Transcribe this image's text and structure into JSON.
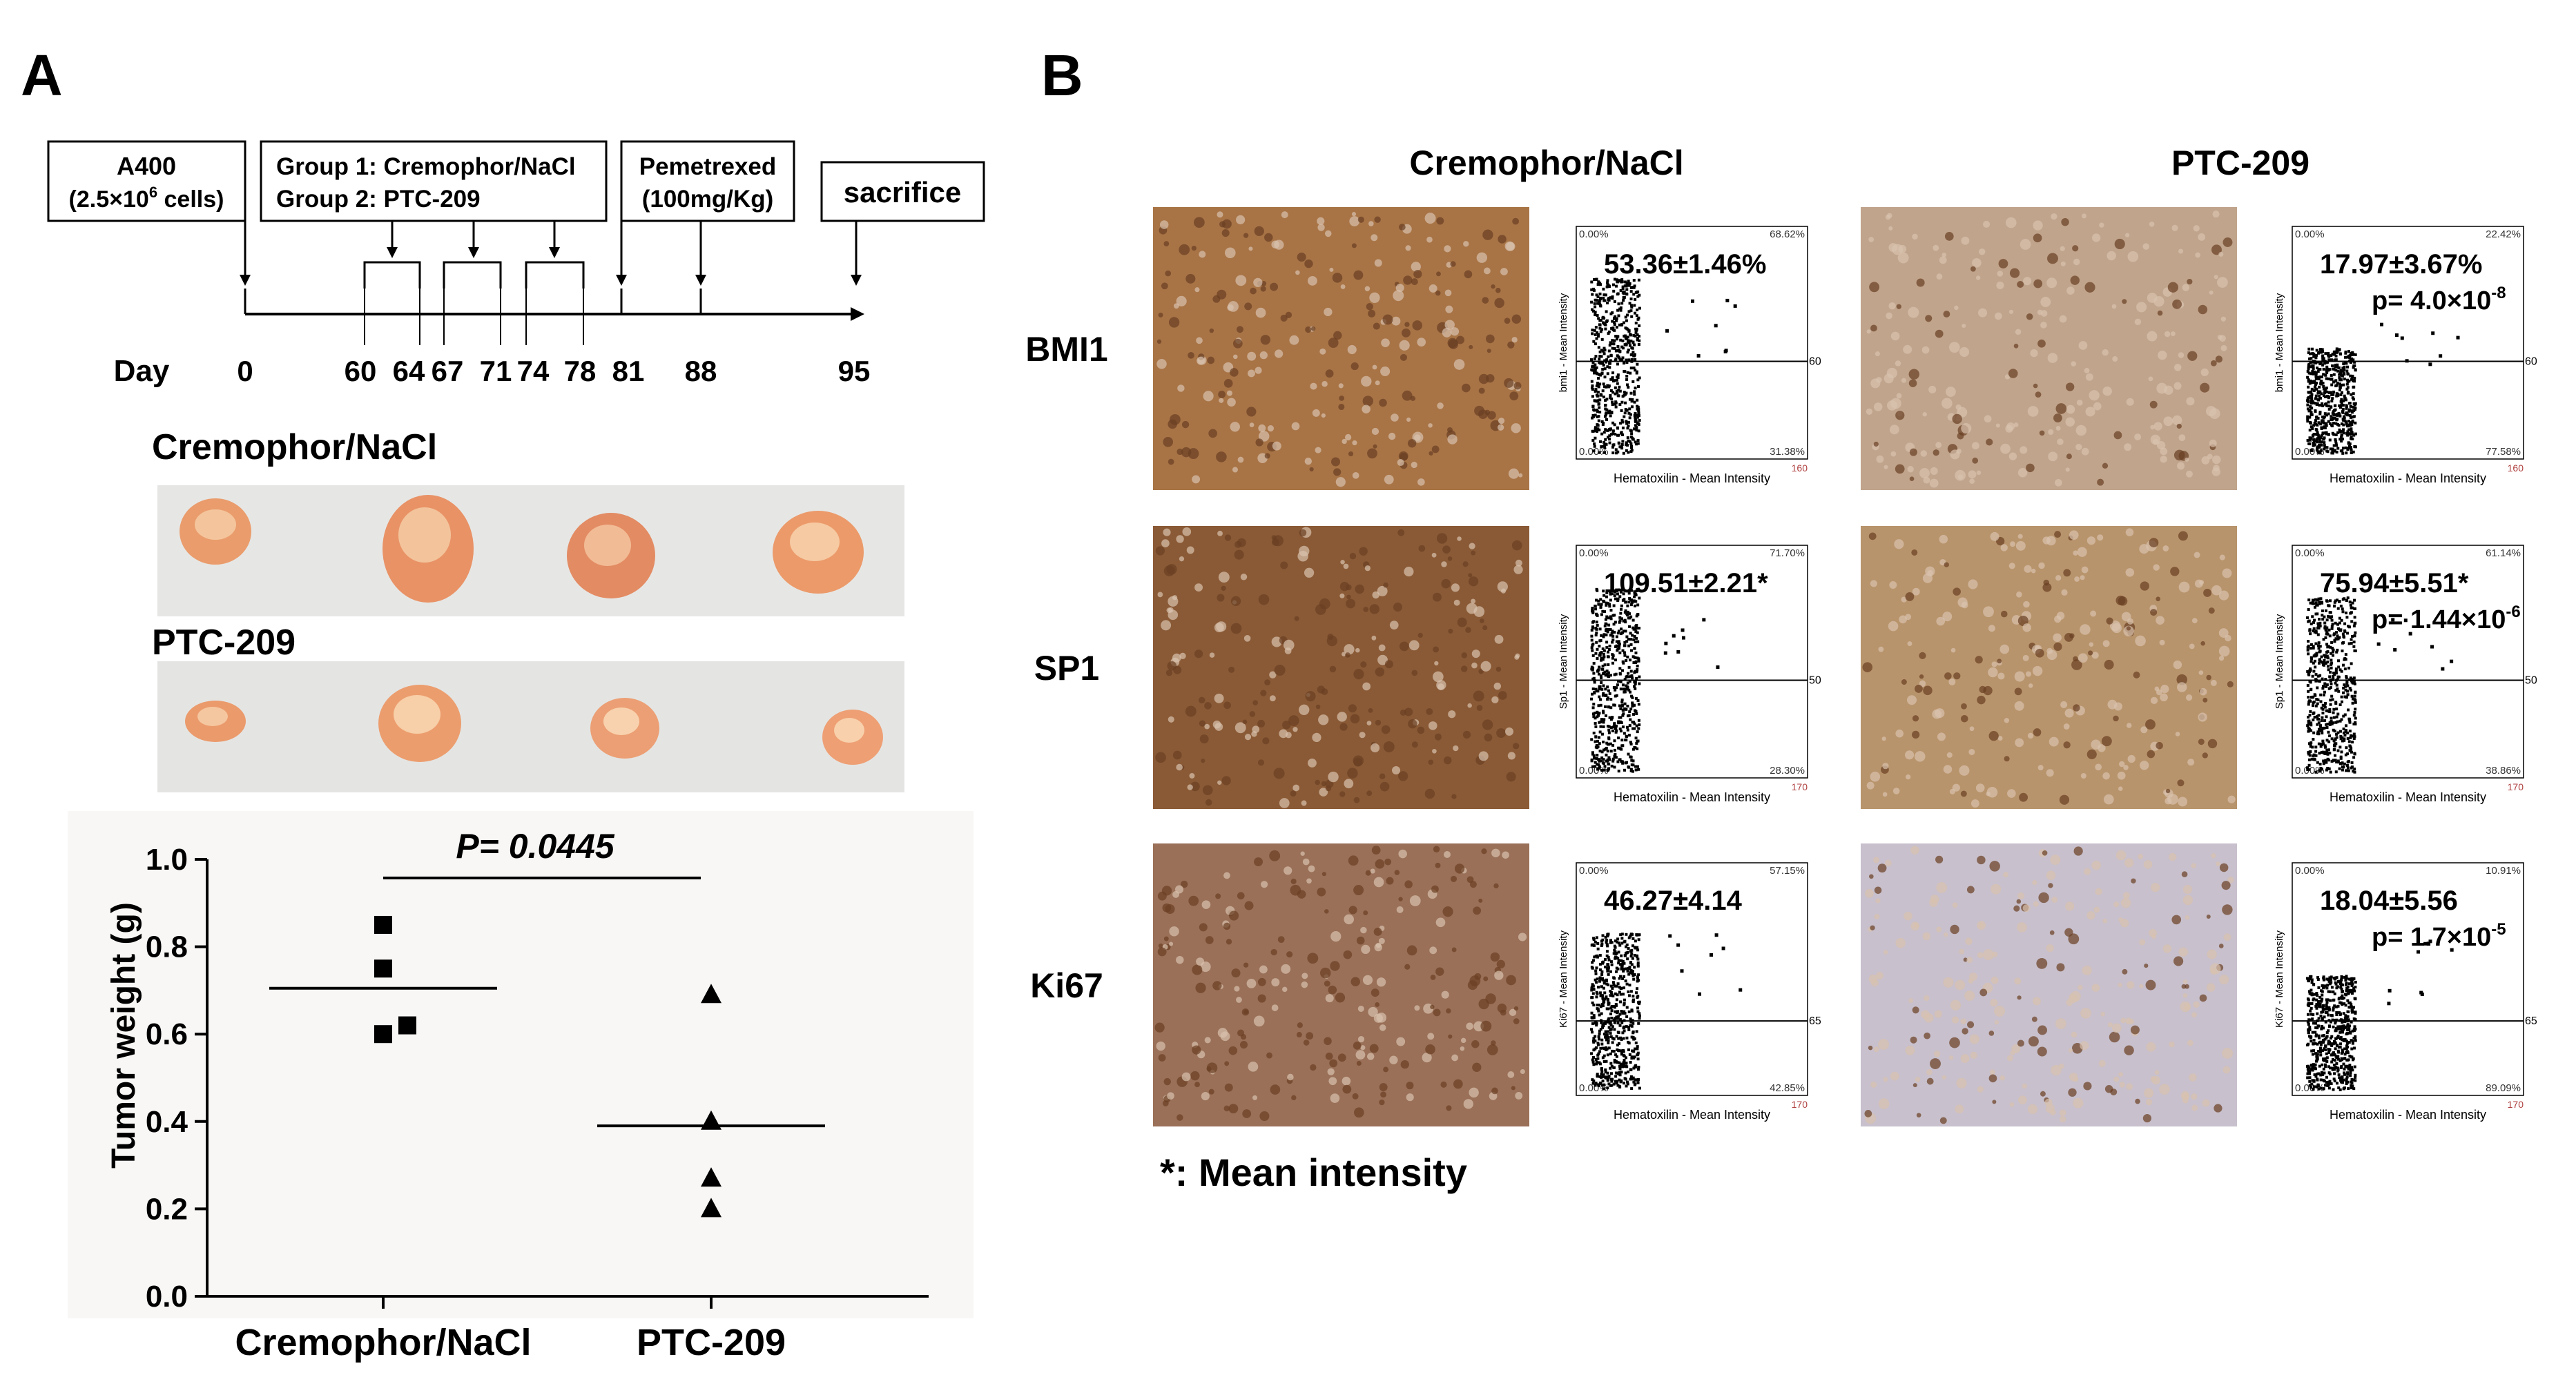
{
  "panel_a": {
    "label": "A",
    "timeline": {
      "box_a400": [
        "A400",
        "(2.5×10",
        "6",
        " cells)"
      ],
      "box_groups": [
        "Group 1: Cremophor/NaCl",
        "Group 2: PTC-209"
      ],
      "box_pemetrexed": [
        "Pemetrexed",
        "(100mg/Kg)"
      ],
      "box_sacrifice": "sacrifice",
      "day_label": "Day",
      "days": [
        "0",
        "60",
        "64",
        "67",
        "71",
        "74",
        "78",
        "81",
        "88",
        "95"
      ]
    },
    "photos": {
      "label_top": "Cremophor/NaCl",
      "label_bottom": "PTC-209"
    },
    "chart_data": {
      "type": "scatter",
      "ylabel": "Tumor weight (g)",
      "ylim": [
        0.0,
        1.0
      ],
      "yticks": [
        "0.0",
        "0.2",
        "0.4",
        "0.6",
        "0.8",
        "1.0"
      ],
      "categories": [
        "Cremophor/NaCl",
        "PTC-209"
      ],
      "annotation": "P= 0.0445",
      "series": [
        {
          "category": "Cremophor/NaCl",
          "marker": "square",
          "values": [
            0.85,
            0.75,
            0.62,
            0.6
          ],
          "mean": 0.705
        },
        {
          "category": "PTC-209",
          "marker": "triangle",
          "values": [
            0.69,
            0.4,
            0.27,
            0.2
          ],
          "mean": 0.39
        }
      ]
    }
  },
  "panel_b": {
    "label": "B",
    "col_headers": [
      "Cremophor/NaCl",
      "PTC-209"
    ],
    "footnote": "*: Mean intensity",
    "rows": [
      {
        "name": "BMI1",
        "stain_colors": [
          "#a87446",
          "#c0a48c"
        ],
        "threshold": "60",
        "xaxis_max": "160",
        "yaxis_label": "bmi1 - Mean Intensity",
        "xaxis_label": "Hematoxilin - Mean Intensity",
        "left": {
          "value": "53.36±1.46%",
          "p": "",
          "q_tl": "0.00%",
          "q_tr": "68.62%",
          "q_bl": "0.00%",
          "q_br": "31.38%"
        },
        "right": {
          "value": "17.97±3.67%",
          "p_prefix": "p= 4.0×10",
          "p_exp": "-8",
          "q_tl": "0.00%",
          "q_tr": "22.42%",
          "q_bl": "0.00%",
          "q_br": "77.58%"
        }
      },
      {
        "name": "SP1",
        "stain_colors": [
          "#8a5a36",
          "#b8946c"
        ],
        "threshold": "50",
        "xaxis_max": "170",
        "yaxis_label": "Sp1 - Mean Intensity",
        "xaxis_label": "Hematoxilin - Mean Intensity",
        "left": {
          "value": "109.51±2.21*",
          "p": "",
          "q_tl": "0.00%",
          "q_tr": "71.70%",
          "q_bl": "0.00%",
          "q_br": "28.30%"
        },
        "right": {
          "value": "75.94±5.51*",
          "p_prefix": "p= 1.44×10",
          "p_exp": "-6",
          "q_tl": "0.00%",
          "q_tr": "61.14%",
          "q_bl": "0.00%",
          "q_br": "38.86%"
        }
      },
      {
        "name": "Ki67",
        "stain_colors": [
          "#9a7058",
          "#c8c0cc"
        ],
        "threshold": "65",
        "xaxis_max": "170",
        "yaxis_label": "Ki67 - Mean Intensity",
        "xaxis_label": "Hematoxilin - Mean Intensity",
        "left": {
          "value": "46.27±4.14",
          "p": "",
          "q_tl": "0.00%",
          "q_tr": "57.15%",
          "q_bl": "0.00%",
          "q_br": "42.85%"
        },
        "right": {
          "value": "18.04±5.56",
          "p_prefix": "p= 1.7×10",
          "p_exp": "-5",
          "q_tl": "0.00%",
          "q_tr": "10.91%",
          "q_bl": "0.00%",
          "q_br": "89.09%"
        }
      }
    ]
  }
}
